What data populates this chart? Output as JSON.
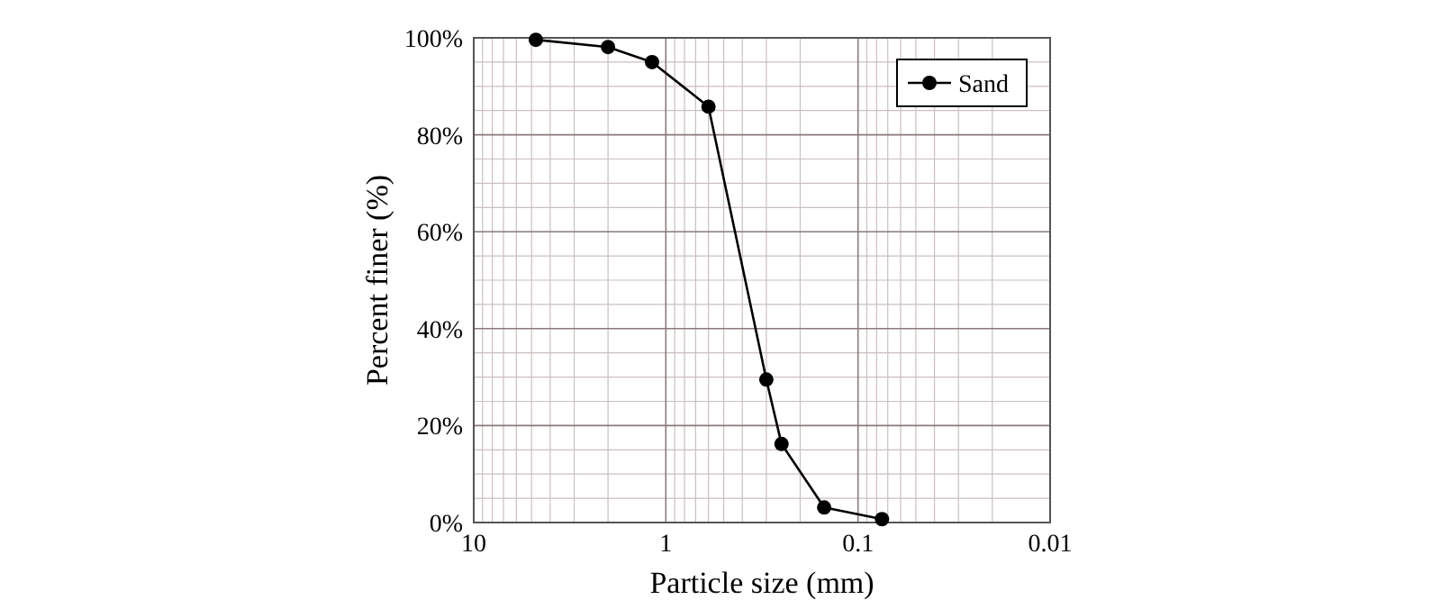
{
  "chart_data": {
    "type": "line",
    "xlabel": "Particle size (mm)",
    "ylabel": "Percent finer (%)",
    "log": "x",
    "xlim": [
      10,
      0.01
    ],
    "xticks": [
      10,
      1,
      0.1,
      0.01
    ],
    "ylim": [
      0,
      100
    ],
    "yticks": [
      {
        "value": 0,
        "label": "0%"
      },
      {
        "value": 20,
        "label": "20%"
      },
      {
        "value": 40,
        "label": "40%"
      },
      {
        "value": 60,
        "label": "60%"
      },
      {
        "value": 80,
        "label": "80%"
      },
      {
        "value": 100,
        "label": "100%"
      }
    ],
    "grid": true,
    "legend": "top right",
    "marker": "circle",
    "line_style": "solid",
    "x": [
      4.75,
      2.0,
      1.18,
      0.6,
      0.3,
      0.25,
      0.15,
      0.075
    ],
    "series": [
      {
        "name": "Sand",
        "color": "#000000",
        "values": [
          99.6,
          98.1,
          95.0,
          85.8,
          29.5,
          16.2,
          3.1,
          0.7
        ]
      }
    ]
  }
}
